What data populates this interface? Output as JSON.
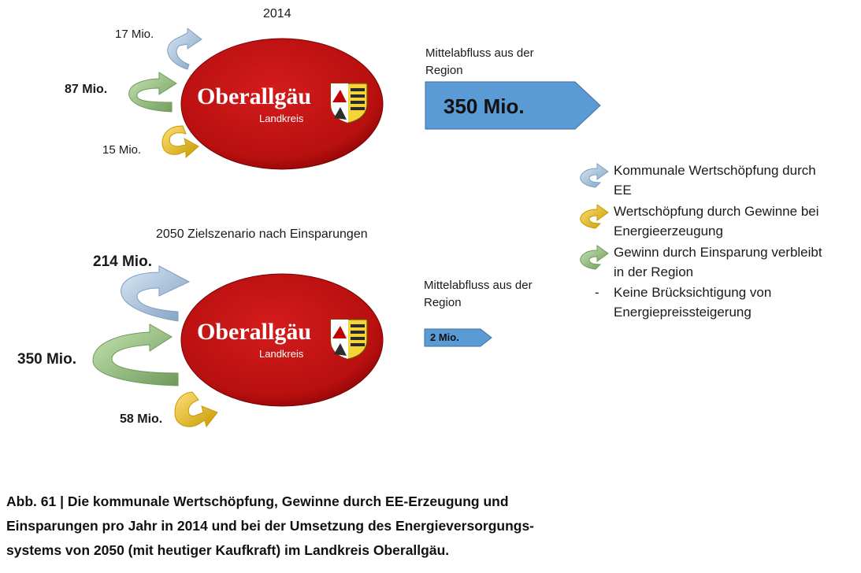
{
  "scenario_2014": {
    "year_label": "2014",
    "inflows": {
      "kommunal": "17 Mio.",
      "einsparung": "87 Mio.",
      "gewinne": "15 Mio."
    },
    "outflow_heading": [
      "Mittelabfluss aus der",
      "Region"
    ],
    "outflow_value": "350 Mio.",
    "region_name": "Oberallgäu",
    "region_subtitle": "Landkreis"
  },
  "scenario_2050": {
    "title": "2050 Zielszenario nach Einsparungen",
    "inflows": {
      "kommunal": "214 Mio.",
      "einsparung": "350 Mio.",
      "gewinne": "58 Mio."
    },
    "outflow_heading": [
      "Mittelabfluss aus der",
      "Region"
    ],
    "outflow_value": "2 Mio.",
    "region_name": "Oberallgäu",
    "region_subtitle": "Landkreis"
  },
  "legend": {
    "kommunal": [
      "Kommunale Wertschöpfung durch",
      "EE"
    ],
    "gewinne": [
      "Wertschöpfung durch Gewinne bei",
      "Energieerzeugung"
    ],
    "einsparung": [
      "Gewinn durch Einsparung verbleibt",
      "in der Region"
    ],
    "note_dash": "-",
    "note": [
      "Keine Brücksichtigung von",
      "Energiepreissteigerung"
    ]
  },
  "colors": {
    "ellipse": "#c00000",
    "ellipse_dark": "#8b0000",
    "outflow_arrow": "#5b9bd5",
    "kommunal_arrow": "#9dc3e6",
    "gewinne_arrow": "#ffc000",
    "einsparung_arrow": "#a9d18e"
  },
  "caption": [
    "Abb. 61 | Die kommunale Wertschöpfung, Gewinne durch EE-Erzeugung und",
    "Einsparungen pro Jahr in 2014 und bei der Umsetzung des Energieversorgungs-",
    "systems von 2050 (mit heutiger Kaufkraft) im Landkreis Oberallgäu."
  ]
}
